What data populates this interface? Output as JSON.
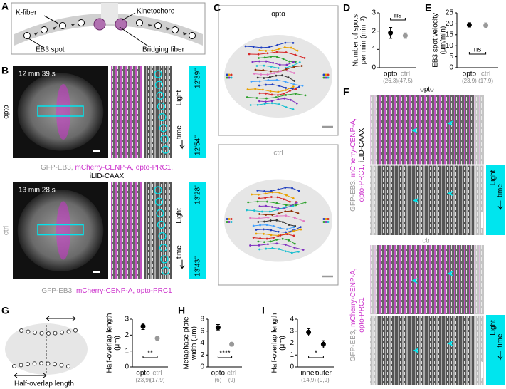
{
  "A": {
    "letter": "A",
    "k_fiber": "K-fiber",
    "kinetochore": "Kinetochore",
    "eb3_spot": "EB3 spot",
    "bridging_fiber": "Bridging fiber"
  },
  "B": {
    "letter": "B",
    "opto": {
      "condition": "opto",
      "timestamp": "12 min 39 s",
      "start": "12'39''",
      "end": "12'54''",
      "light": "Light",
      "time": "time",
      "caption": [
        "GFP-EB3,",
        "mCherry-CENP-A,",
        "opto-PRC1,",
        "iLID-CAAX"
      ]
    },
    "ctrl": {
      "condition": "ctrl",
      "timestamp": "13 min 28 s",
      "start": "13'28''",
      "end": "13'43''",
      "light": "Light",
      "time": "time",
      "caption": [
        "GFP-EB3,",
        "mCherry-CENP-A,",
        "opto-PRC1"
      ]
    }
  },
  "C": {
    "letter": "C",
    "opto": "opto",
    "ctrl": "ctrl"
  },
  "D": {
    "letter": "D"
  },
  "E": {
    "letter": "E"
  },
  "F": {
    "letter": "F",
    "opto": {
      "condition": "opto",
      "side_label": [
        [
          "GFP-EB3,",
          "mCherry-CENP-A,"
        ],
        [
          "opto-PRC1,",
          "iLID-CAAX"
        ]
      ],
      "light": "Light",
      "time": "time"
    },
    "ctrl": {
      "condition": "ctrl",
      "side_label": [
        [
          "GFP-EB3,",
          "mCherry-CENP-A,"
        ],
        [
          "opto-PRC1"
        ]
      ],
      "light": "Light",
      "time": "time"
    }
  },
  "G": {
    "letter": "G",
    "diagram_label": "Half-overlap length"
  },
  "H": {
    "letter": "H"
  },
  "I": {
    "letter": "I"
  },
  "chart_data": [
    {
      "type": "dot",
      "ylabel": [
        "Number of spots",
        "per min (min⁻¹)"
      ],
      "categories": [
        "opto",
        "ctrl"
      ],
      "n_labels": [
        "(26,3)",
        "(47,5)"
      ],
      "values": [
        1.9,
        1.75
      ],
      "errors": [
        0.3,
        0.15
      ],
      "colors": [
        "#000000",
        "#999999"
      ],
      "ylim": [
        0,
        3
      ],
      "yticks": [
        0,
        1,
        2,
        3
      ],
      "significance": "ns"
    },
    {
      "type": "dot",
      "ylabel": [
        "EB3 spot velocity",
        "(μm/min)"
      ],
      "categories": [
        "opto",
        "ctrl"
      ],
      "n_labels": [
        "(23,9)",
        "(17,9)"
      ],
      "values": [
        19.5,
        19.2
      ],
      "errors": [
        1,
        1.2
      ],
      "colors": [
        "#000000",
        "#999999"
      ],
      "ylim": [
        0,
        25
      ],
      "yticks": [
        0,
        5,
        10,
        15,
        20,
        25
      ],
      "significance": "ns"
    },
    {
      "type": "dot",
      "ylabel": [
        "Half-overlap length",
        "(μm)"
      ],
      "categories": [
        "opto",
        "ctrl"
      ],
      "n_labels": [
        "(23,9)",
        "(17,9)"
      ],
      "values": [
        2.55,
        1.8
      ],
      "errors": [
        0.2,
        0.15
      ],
      "colors": [
        "#000000",
        "#999999"
      ],
      "ylim": [
        0,
        3
      ],
      "yticks": [
        0,
        1,
        2,
        3
      ],
      "significance": "**"
    },
    {
      "type": "dot",
      "ylabel": [
        "Metaphase plate",
        "width (μm)"
      ],
      "categories": [
        "opto",
        "ctrl"
      ],
      "n_labels": [
        "(6)",
        "(9)"
      ],
      "values": [
        6.6,
        3.8
      ],
      "errors": [
        0.5,
        0.3
      ],
      "colors": [
        "#000000",
        "#999999"
      ],
      "ylim": [
        0,
        8
      ],
      "yticks": [
        0,
        2,
        4,
        6,
        8
      ],
      "significance": "****"
    },
    {
      "type": "dot",
      "ylabel": [
        "Half-overlap length",
        "(μm)"
      ],
      "categories": [
        "inner",
        "outer"
      ],
      "n_labels": [
        "(14,9)",
        "(9,9)"
      ],
      "values": [
        2.9,
        1.9
      ],
      "errors": [
        0.3,
        0.3
      ],
      "colors": [
        "#000000",
        "#000000"
      ],
      "ylim": [
        0,
        4
      ],
      "yticks": [
        0,
        1,
        2,
        3,
        4
      ],
      "significance": "*"
    }
  ]
}
